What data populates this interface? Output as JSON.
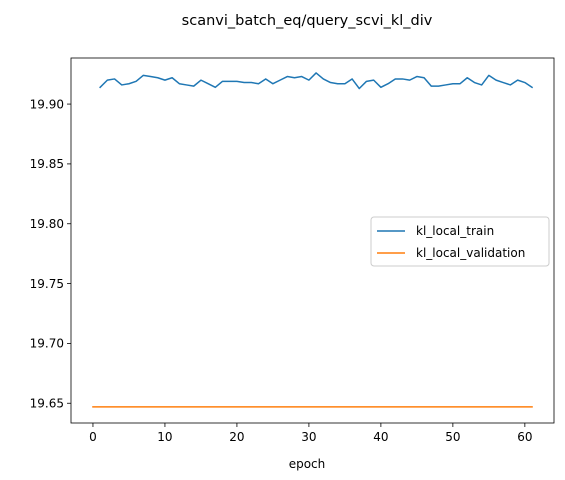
{
  "chart_data": {
    "type": "line",
    "title": "scanvi_batch_eq/query_scvi_kl_div",
    "xlabel": "epoch",
    "ylabel": "",
    "xlim": [
      -3.05,
      64.05
    ],
    "ylim": [
      19.6335,
      19.9385
    ],
    "xticks": [
      0,
      10,
      20,
      30,
      40,
      50,
      60
    ],
    "yticks": [
      19.65,
      19.7,
      19.75,
      19.8,
      19.85,
      19.9
    ],
    "ytick_labels": [
      "19.65",
      "19.70",
      "19.75",
      "19.80",
      "19.85",
      "19.90"
    ],
    "grid": false,
    "legend_position": "center-right",
    "series": [
      {
        "name": "kl_local_train",
        "color": "#1f77b4",
        "x": [
          1,
          2,
          3,
          4,
          5,
          6,
          7,
          8,
          9,
          10,
          11,
          12,
          13,
          14,
          15,
          16,
          17,
          18,
          19,
          20,
          21,
          22,
          23,
          24,
          25,
          26,
          27,
          28,
          29,
          30,
          31,
          32,
          33,
          34,
          35,
          36,
          37,
          38,
          39,
          40,
          41,
          42,
          43,
          44,
          45,
          46,
          47,
          48,
          49,
          50,
          51,
          52,
          53,
          54,
          55,
          56,
          57,
          58,
          59,
          60,
          61
        ],
        "values": [
          19.914,
          19.92,
          19.921,
          19.916,
          19.917,
          19.919,
          19.924,
          19.923,
          19.922,
          19.92,
          19.922,
          19.917,
          19.916,
          19.915,
          19.92,
          19.917,
          19.914,
          19.919,
          19.919,
          19.919,
          19.918,
          19.918,
          19.917,
          19.921,
          19.917,
          19.92,
          19.923,
          19.922,
          19.923,
          19.92,
          19.926,
          19.921,
          19.918,
          19.917,
          19.917,
          19.921,
          19.913,
          19.919,
          19.92,
          19.914,
          19.917,
          19.921,
          19.921,
          19.92,
          19.923,
          19.922,
          19.915,
          19.915,
          19.916,
          19.917,
          19.917,
          19.922,
          19.918,
          19.916,
          19.924,
          19.92,
          19.918,
          19.916,
          19.92,
          19.918,
          19.914
        ]
      },
      {
        "name": "kl_local_validation",
        "color": "#ff7f0e",
        "x": [
          0,
          61
        ],
        "values": [
          19.647,
          19.647
        ]
      }
    ]
  }
}
